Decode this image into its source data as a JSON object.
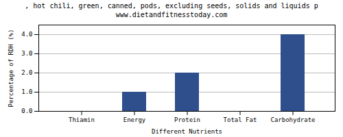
{
  "chart_data": {
    "type": "bar",
    "title": ", hot chili, green, canned, pods, excluding seeds, solids and liquids p",
    "subtitle": "www.dietandfitnesstoday.com",
    "categories": [
      "Thiamin",
      "Energy",
      "Protein",
      "Total Fat",
      "Carbohydrate"
    ],
    "values": [
      0.0,
      1.0,
      2.0,
      0.0,
      4.0
    ],
    "color": "#2e4e8c",
    "xlabel": "Different Nutrients",
    "ylabel": "Percentage of RDH (%)",
    "ylim": [
      0,
      4.5
    ],
    "yticks": [
      {
        "value": 0,
        "label": "0.0"
      },
      {
        "value": 1,
        "label": "1.0"
      },
      {
        "value": 2,
        "label": "2.0"
      },
      {
        "value": 3,
        "label": "3.0"
      },
      {
        "value": 4,
        "label": "4.0"
      }
    ],
    "grid": true
  }
}
